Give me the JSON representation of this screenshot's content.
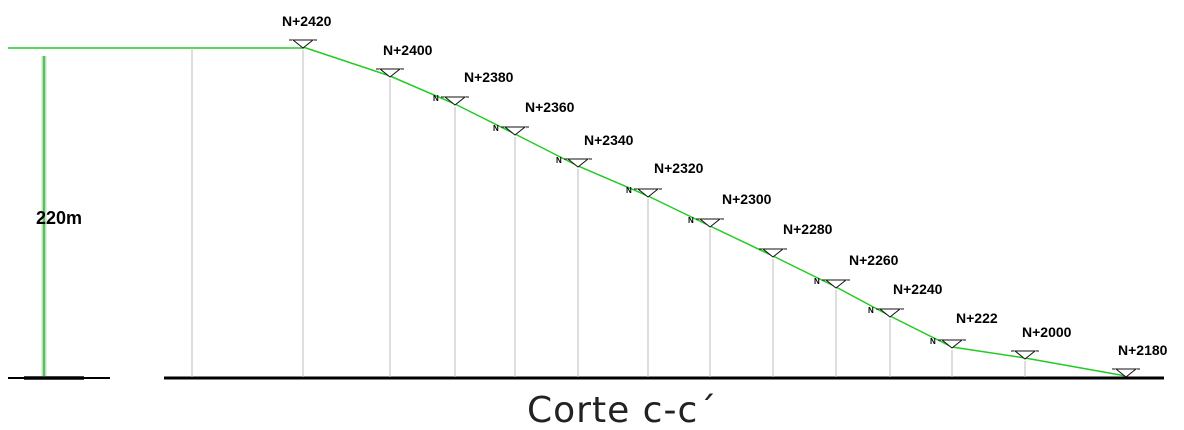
{
  "section_title": "Corte c-c´",
  "height_label": "220m",
  "small_marker_letter": "N",
  "profile_color": "#22cc22",
  "dimension_color": "#5fc65f",
  "levels": [
    {
      "label": "N+2420",
      "small": false
    },
    {
      "label": "N+2400",
      "small": false
    },
    {
      "label": "N+2380",
      "small": true
    },
    {
      "label": "N+2360",
      "small": true
    },
    {
      "label": "N+2340",
      "small": true
    },
    {
      "label": "N+2320",
      "small": true
    },
    {
      "label": "N+2300",
      "small": true
    },
    {
      "label": "N+2280",
      "small": false
    },
    {
      "label": "N+2260",
      "small": true
    },
    {
      "label": "N+2240",
      "small": true
    },
    {
      "label": "N+222",
      "small": true
    },
    {
      "label": "N+2000",
      "small": false
    },
    {
      "label": "N+2180",
      "small": false
    }
  ]
}
